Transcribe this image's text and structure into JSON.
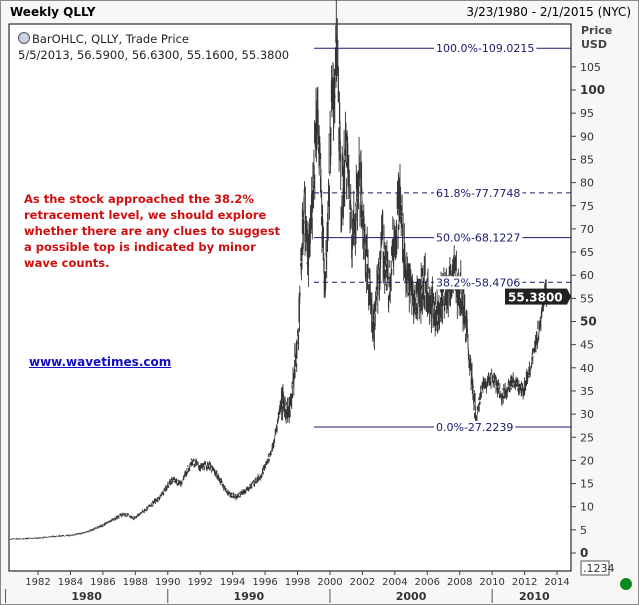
{
  "header": {
    "title": "Weekly QLLY",
    "date_range": "3/23/1980 - 2/1/2015 (NYC)"
  },
  "legend": {
    "line1": "BarOHLC, QLLY, Trade Price",
    "line2": "5/5/2013, 56.5900, 56.6300, 55.1600, 55.3800"
  },
  "annotation": "As the stock approached the 38.2% retracement level, we should explore whether there are any clues to suggest a possible top is indicated by minor wave counts.",
  "link": "www.wavetimes.com",
  "colors": {
    "price": "#333333",
    "fib": "#1a1a6e",
    "annotation": "#d01010",
    "link": "#1010c0",
    "status_dot": "#0a8a1a"
  },
  "chart_data": {
    "type": "bar",
    "subtype": "OHLC weekly",
    "title": "Weekly QLLY",
    "ylabel": "Price\nUSD",
    "ylabel_lines": [
      "Price",
      "USD"
    ],
    "ylim": [
      0,
      110
    ],
    "yticks": [
      0,
      5,
      10,
      15,
      20,
      25,
      30,
      35,
      40,
      45,
      50,
      55,
      60,
      65,
      70,
      75,
      80,
      85,
      90,
      95,
      100,
      105
    ],
    "xlim": [
      1980.2,
      2015.1
    ],
    "xticks": [
      "1982",
      "1984",
      "1986",
      "1988",
      "1990",
      "1992",
      "1994",
      "1996",
      "1998",
      "2000",
      "2002",
      "2004",
      "2006",
      "2008",
      "2010",
      "2012",
      "2014"
    ],
    "decades": [
      "1980",
      "1990",
      "2000",
      "2010"
    ],
    "last_price": "55.3800",
    "corner_label": ".1234",
    "approx_close": [
      [
        1980.2,
        3
      ],
      [
        1982,
        3.2
      ],
      [
        1983,
        3.6
      ],
      [
        1984,
        3.8
      ],
      [
        1985,
        4.5
      ],
      [
        1986,
        6
      ],
      [
        1987.3,
        8.5
      ],
      [
        1987.9,
        7.5
      ],
      [
        1988.5,
        9
      ],
      [
        1989.5,
        12
      ],
      [
        1990.3,
        16
      ],
      [
        1990.8,
        15
      ],
      [
        1991.5,
        20
      ],
      [
        1992,
        18.5
      ],
      [
        1992.5,
        19
      ],
      [
        1993,
        17
      ],
      [
        1993.7,
        13
      ],
      [
        1994.2,
        12
      ],
      [
        1995,
        14
      ],
      [
        1995.8,
        17
      ],
      [
        1996.5,
        23
      ],
      [
        1997,
        33
      ],
      [
        1997.5,
        30
      ],
      [
        1998,
        45
      ],
      [
        1998.4,
        75
      ],
      [
        1998.7,
        62
      ],
      [
        1999.2,
        97
      ],
      [
        1999.7,
        58
      ],
      [
        2000.1,
        95
      ],
      [
        2000.45,
        109
      ],
      [
        2000.7,
        75
      ],
      [
        2001,
        88
      ],
      [
        2001.4,
        68
      ],
      [
        2001.8,
        82
      ],
      [
        2002.3,
        62
      ],
      [
        2002.7,
        48
      ],
      [
        2003.2,
        68
      ],
      [
        2003.6,
        58
      ],
      [
        2004.3,
        77
      ],
      [
        2004.7,
        60
      ],
      [
        2005.2,
        54
      ],
      [
        2005.8,
        58
      ],
      [
        2006.5,
        52
      ],
      [
        2007.2,
        57
      ],
      [
        2007.7,
        60
      ],
      [
        2008.2,
        55
      ],
      [
        2008.6,
        42
      ],
      [
        2009.0,
        29
      ],
      [
        2009.4,
        36
      ],
      [
        2010,
        38
      ],
      [
        2010.6,
        34
      ],
      [
        2011.3,
        37
      ],
      [
        2011.9,
        35
      ],
      [
        2012.5,
        42
      ],
      [
        2013,
        50
      ],
      [
        2013.33,
        58
      ],
      [
        2013.36,
        55.38
      ]
    ],
    "fib_levels": [
      {
        "label": "100.0%",
        "value": 109.0215,
        "text": "109.0215",
        "style": "solid"
      },
      {
        "label": "61.8%",
        "value": 77.7748,
        "text": "77.7748",
        "style": "dashed"
      },
      {
        "label": "50.0%",
        "value": 68.1227,
        "text": "68.1227",
        "style": "solid"
      },
      {
        "label": "38.2%",
        "value": 58.4706,
        "text": "58.4706",
        "style": "dashed"
      },
      {
        "label": "0.0%",
        "value": 27.2239,
        "text": "27.2239",
        "style": "solid"
      }
    ]
  }
}
